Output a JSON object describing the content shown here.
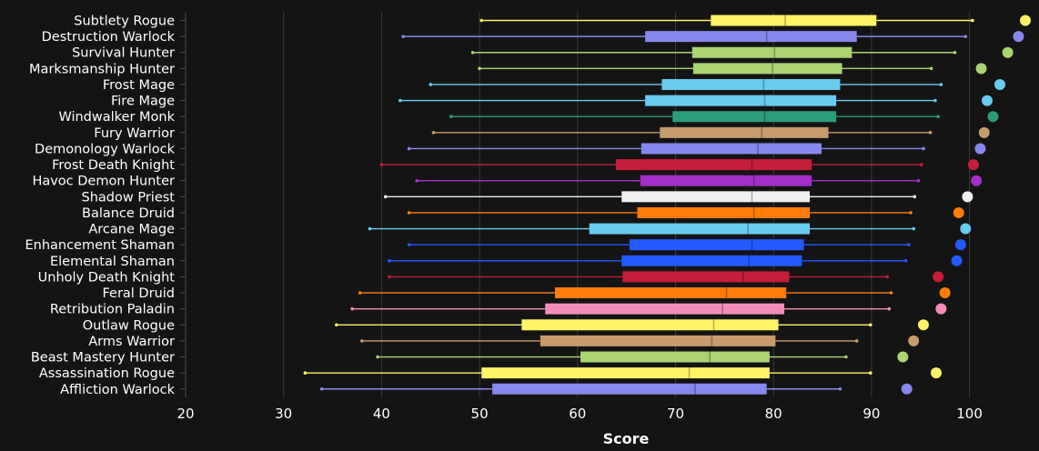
{
  "chart_data": {
    "type": "boxplot",
    "title": "",
    "xlabel": "Score",
    "ylabel": "",
    "xlim": [
      20,
      107
    ],
    "xticks": [
      20,
      30,
      40,
      50,
      60,
      70,
      80,
      90,
      100
    ],
    "grid": "vertical",
    "series": [
      {
        "name": "Subtlety Rogue",
        "color": "#fff468",
        "min": 50.2,
        "q1": 73.6,
        "median": 81.2,
        "q3": 90.5,
        "max": 100.3,
        "top": 105.7
      },
      {
        "name": "Destruction Warlock",
        "color": "#8788ee",
        "min": 42.2,
        "q1": 66.9,
        "median": 79.3,
        "q3": 88.5,
        "max": 99.6,
        "top": 105.0
      },
      {
        "name": "Survival Hunter",
        "color": "#aad372",
        "min": 49.3,
        "q1": 71.7,
        "median": 80.1,
        "q3": 88.0,
        "max": 98.5,
        "top": 103.9
      },
      {
        "name": "Marksmanship Hunter",
        "color": "#aad372",
        "min": 50.0,
        "q1": 71.8,
        "median": 79.9,
        "q3": 87.0,
        "max": 96.1,
        "top": 101.2
      },
      {
        "name": "Frost Mage",
        "color": "#68ccef",
        "min": 45.0,
        "q1": 68.6,
        "median": 79.0,
        "q3": 86.8,
        "max": 97.1,
        "top": 103.1
      },
      {
        "name": "Fire Mage",
        "color": "#68ccef",
        "min": 41.9,
        "q1": 66.9,
        "median": 79.1,
        "q3": 86.4,
        "max": 96.5,
        "top": 101.8
      },
      {
        "name": "Windwalker Monk",
        "color": "#2b9c7a",
        "min": 47.1,
        "q1": 69.7,
        "median": 79.1,
        "q3": 86.4,
        "max": 96.8,
        "top": 102.4
      },
      {
        "name": "Fury Warrior",
        "color": "#c69b6d",
        "min": 45.3,
        "q1": 68.4,
        "median": 78.8,
        "q3": 85.6,
        "max": 96.0,
        "top": 101.5
      },
      {
        "name": "Demonology Warlock",
        "color": "#8788ee",
        "min": 42.8,
        "q1": 66.5,
        "median": 78.4,
        "q3": 84.9,
        "max": 95.3,
        "top": 101.1
      },
      {
        "name": "Frost Death Knight",
        "color": "#c41e3a",
        "min": 40.0,
        "q1": 63.9,
        "median": 77.8,
        "q3": 83.9,
        "max": 95.1,
        "top": 100.4
      },
      {
        "name": "Havoc Demon Hunter",
        "color": "#a330c9",
        "min": 43.6,
        "q1": 66.4,
        "median": 78.0,
        "q3": 83.9,
        "max": 94.8,
        "top": 100.7
      },
      {
        "name": "Shadow Priest",
        "color": "#f0f0f0",
        "min": 40.4,
        "q1": 64.5,
        "median": 77.8,
        "q3": 83.7,
        "max": 94.4,
        "top": 99.8
      },
      {
        "name": "Balance Druid",
        "color": "#ff7c0a",
        "min": 42.8,
        "q1": 66.1,
        "median": 78.0,
        "q3": 83.7,
        "max": 94.0,
        "top": 98.9
      },
      {
        "name": "Arcane Mage",
        "color": "#68ccef",
        "min": 38.8,
        "q1": 61.2,
        "median": 77.4,
        "q3": 83.7,
        "max": 94.3,
        "top": 99.6
      },
      {
        "name": "Enhancement Shaman",
        "color": "#2459ff",
        "min": 42.8,
        "q1": 65.3,
        "median": 77.8,
        "q3": 83.1,
        "max": 93.8,
        "top": 99.1
      },
      {
        "name": "Elemental Shaman",
        "color": "#2459ff",
        "min": 40.8,
        "q1": 64.5,
        "median": 77.5,
        "q3": 82.9,
        "max": 93.5,
        "top": 98.7
      },
      {
        "name": "Unholy Death Knight",
        "color": "#c41e3a",
        "min": 40.8,
        "q1": 64.6,
        "median": 76.9,
        "q3": 81.6,
        "max": 91.6,
        "top": 96.8
      },
      {
        "name": "Feral Druid",
        "color": "#ff7c0a",
        "min": 37.8,
        "q1": 57.7,
        "median": 75.2,
        "q3": 81.3,
        "max": 92.0,
        "top": 97.5
      },
      {
        "name": "Retribution Paladin",
        "color": "#f48cba",
        "min": 37.0,
        "q1": 56.7,
        "median": 74.8,
        "q3": 81.1,
        "max": 91.8,
        "top": 97.1
      },
      {
        "name": "Outlaw Rogue",
        "color": "#fff468",
        "min": 35.4,
        "q1": 54.3,
        "median": 73.9,
        "q3": 80.5,
        "max": 89.9,
        "top": 95.3
      },
      {
        "name": "Arms Warrior",
        "color": "#c69b6d",
        "min": 38.0,
        "q1": 56.2,
        "median": 73.7,
        "q3": 80.2,
        "max": 88.5,
        "top": 94.3
      },
      {
        "name": "Beast Mastery Hunter",
        "color": "#aad372",
        "min": 39.6,
        "q1": 60.3,
        "median": 73.5,
        "q3": 79.6,
        "max": 87.4,
        "top": 93.2
      },
      {
        "name": "Assassination Rogue",
        "color": "#fff468",
        "min": 32.2,
        "q1": 50.2,
        "median": 71.4,
        "q3": 79.6,
        "max": 89.9,
        "top": 96.6
      },
      {
        "name": "Affliction Warlock",
        "color": "#8788ee",
        "min": 33.9,
        "q1": 51.3,
        "median": 72.0,
        "q3": 79.3,
        "max": 86.8,
        "top": 93.6
      }
    ]
  }
}
